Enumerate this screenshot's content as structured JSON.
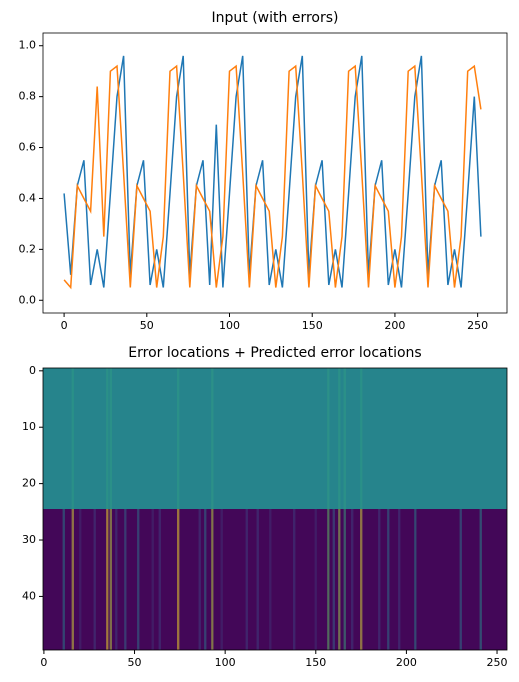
{
  "chart_data": [
    {
      "type": "line",
      "title": "Input (with errors)",
      "x": [
        0,
        4,
        8,
        12,
        16,
        20,
        24,
        28,
        32,
        36,
        40,
        44,
        48,
        52,
        56,
        60,
        64,
        68,
        72,
        76,
        80,
        84,
        88,
        92,
        96,
        100,
        104,
        108,
        112,
        116,
        120,
        124,
        128,
        132,
        136,
        140,
        144,
        148,
        152,
        156,
        160,
        164,
        168,
        172,
        176,
        180,
        184,
        188,
        192,
        196,
        200,
        204,
        208,
        212,
        216,
        220,
        224,
        228,
        232,
        236,
        240,
        244,
        248,
        252
      ],
      "series": [
        {
          "color": "#1f77b4",
          "values": [
            0.42,
            0.1,
            0.45,
            0.55,
            0.06,
            0.2,
            0.05,
            0.42,
            0.8,
            0.96,
            0.1,
            0.45,
            0.55,
            0.06,
            0.2,
            0.05,
            0.42,
            0.8,
            0.96,
            0.1,
            0.45,
            0.55,
            0.06,
            0.69,
            0.05,
            0.42,
            0.8,
            0.96,
            0.1,
            0.45,
            0.55,
            0.06,
            0.2,
            0.05,
            0.42,
            0.8,
            0.96,
            0.1,
            0.45,
            0.55,
            0.06,
            0.2,
            0.05,
            0.42,
            0.8,
            0.96,
            0.1,
            0.45,
            0.55,
            0.06,
            0.2,
            0.05,
            0.42,
            0.8,
            0.96,
            0.1,
            0.45,
            0.55,
            0.06,
            0.2,
            0.05,
            0.42,
            0.8,
            0.25
          ]
        },
        {
          "color": "#ff7f0e",
          "values": [
            0.08,
            0.05,
            0.45,
            0.4,
            0.35,
            0.84,
            0.25,
            0.9,
            0.92,
            0.5,
            0.05,
            0.45,
            0.4,
            0.35,
            0.05,
            0.25,
            0.9,
            0.92,
            0.5,
            0.05,
            0.45,
            0.4,
            0.35,
            0.05,
            0.25,
            0.9,
            0.92,
            0.5,
            0.05,
            0.45,
            0.4,
            0.35,
            0.05,
            0.25,
            0.9,
            0.92,
            0.5,
            0.05,
            0.45,
            0.4,
            0.35,
            0.05,
            0.25,
            0.9,
            0.92,
            0.5,
            0.05,
            0.45,
            0.4,
            0.35,
            0.05,
            0.25,
            0.9,
            0.92,
            0.5,
            0.05,
            0.45,
            0.4,
            0.35,
            0.05,
            0.25,
            0.9,
            0.92,
            0.75
          ]
        }
      ],
      "xlim": [
        -12.75,
        267.75
      ],
      "xticks": [
        0,
        50,
        100,
        150,
        200,
        250
      ],
      "ylim": [
        -0.05,
        1.05
      ],
      "yticks": [
        {
          "value": 0,
          "label": "0.0"
        },
        {
          "value": 0.2,
          "label": "0.2"
        },
        {
          "value": 0.4,
          "label": "0.4"
        },
        {
          "value": 0.6,
          "label": "0.6"
        },
        {
          "value": 0.8,
          "label": "0.8"
        },
        {
          "value": 1,
          "label": "1.0"
        }
      ]
    },
    {
      "type": "heatmap",
      "title": "Error locations + Predicted error locations",
      "xlim": [
        -0.5,
        255.5
      ],
      "xticks": [
        0,
        50,
        100,
        150,
        200,
        250
      ],
      "ylim": [
        49.5,
        -0.5
      ],
      "yticks": [
        0,
        10,
        20,
        30,
        40
      ],
      "blocks": [
        {
          "rows": [
            -0.5,
            24.5
          ],
          "base": 0.45,
          "columns": [
            16,
            35,
            37,
            74,
            93,
            157,
            163,
            166,
            175
          ],
          "column_values": [
            0.55,
            0.55,
            0.55,
            0.55,
            0.55,
            0.55,
            0.55,
            0.55,
            0.55
          ]
        },
        {
          "rows": [
            24.5,
            49.5
          ],
          "base": 0.02,
          "columns": [
            11,
            16,
            20,
            28,
            35,
            37,
            40,
            45,
            52,
            60,
            64,
            74,
            86,
            89,
            93,
            98,
            112,
            118,
            125,
            138,
            150,
            157,
            160,
            163,
            166,
            170,
            175,
            185,
            190,
            196,
            205,
            230,
            241
          ],
          "column_values": [
            0.45,
            0.95,
            0.15,
            0.2,
            1,
            0.9,
            0.2,
            0.35,
            0.4,
            0.15,
            0.2,
            1,
            0.2,
            0.4,
            0.9,
            0.15,
            0.2,
            0.2,
            0.15,
            0.2,
            0.15,
            0.75,
            0.35,
            0.85,
            0.6,
            0.2,
            0.95,
            0.2,
            0.4,
            0.2,
            0.45,
            0.4,
            0.5
          ]
        }
      ]
    }
  ]
}
